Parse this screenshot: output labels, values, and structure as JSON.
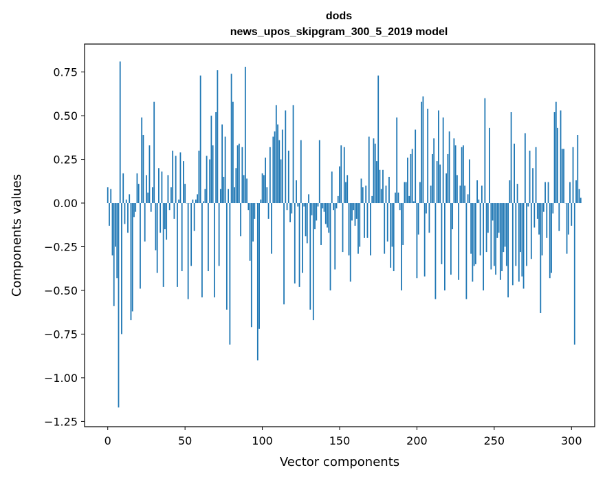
{
  "chart_data": {
    "type": "bar",
    "title": "dods",
    "subtitle": "news_upos_skipgram_300_5_2019 model",
    "xlabel": "Vector components",
    "ylabel": "Components values",
    "xlim": [
      -15,
      315
    ],
    "ylim": [
      -1.28,
      0.91
    ],
    "xticks": [
      0,
      50,
      100,
      150,
      200,
      250,
      300
    ],
    "xtick_labels": [
      "0",
      "50",
      "100",
      "150",
      "200",
      "250",
      "300"
    ],
    "yticks": [
      0.75,
      0.5,
      0.25,
      0.0,
      -0.25,
      -0.5,
      -0.75,
      -1.0,
      -1.25
    ],
    "ytick_labels": [
      "0.75",
      "0.50",
      "0.25",
      "0.00",
      "−0.25",
      "−0.50",
      "−0.75",
      "−1.00",
      "−1.25"
    ],
    "bar_color": "#1f77b4",
    "values": [
      0.09,
      -0.13,
      0.08,
      -0.3,
      -0.59,
      -0.25,
      -0.43,
      -1.17,
      0.81,
      -0.75,
      0.17,
      -0.12,
      0.02,
      -0.17,
      0.05,
      -0.67,
      -0.62,
      -0.08,
      -0.05,
      0.17,
      0.11,
      -0.49,
      0.49,
      0.39,
      -0.22,
      0.16,
      0.06,
      0.33,
      -0.05,
      0.09,
      0.58,
      -0.27,
      -0.4,
      0.2,
      -0.17,
      0.18,
      -0.48,
      -0.15,
      -0.21,
      0.16,
      -0.04,
      0.09,
      0.3,
      -0.09,
      0.27,
      -0.48,
      0.02,
      0.29,
      -0.39,
      0.24,
      0.11,
      0.0,
      -0.55,
      0.0,
      -0.36,
      0.02,
      -0.16,
      0.02,
      0.05,
      0.3,
      0.73,
      -0.54,
      0.01,
      0.08,
      0.27,
      -0.39,
      0.25,
      0.5,
      0.33,
      -0.54,
      0.52,
      0.76,
      -0.36,
      0.08,
      0.45,
      0.15,
      0.38,
      -0.61,
      0.08,
      -0.81,
      0.74,
      0.58,
      0.09,
      0.2,
      0.33,
      0.34,
      -0.19,
      0.32,
      0.16,
      0.78,
      0.14,
      -0.04,
      -0.33,
      -0.71,
      -0.22,
      -0.09,
      0.0,
      -0.9,
      -0.72,
      0.02,
      0.17,
      0.16,
      0.26,
      0.09,
      -0.09,
      0.32,
      -0.29,
      0.38,
      0.41,
      0.56,
      0.45,
      0.36,
      0.25,
      0.42,
      -0.58,
      0.53,
      -0.04,
      0.3,
      -0.11,
      -0.06,
      0.56,
      -0.46,
      0.13,
      -0.02,
      -0.48,
      0.36,
      -0.4,
      -0.02,
      -0.19,
      -0.23,
      0.05,
      -0.61,
      -0.07,
      -0.67,
      -0.15,
      -0.1,
      -0.02,
      0.36,
      -0.24,
      -0.03,
      -0.05,
      -0.12,
      -0.14,
      -0.17,
      -0.5,
      0.18,
      -0.04,
      -0.38,
      -0.03,
      0.04,
      0.21,
      0.33,
      -0.28,
      0.32,
      0.12,
      0.16,
      -0.3,
      -0.45,
      -0.1,
      -0.04,
      -0.13,
      -0.09,
      -0.29,
      -0.25,
      0.14,
      0.09,
      -0.2,
      0.1,
      -0.2,
      0.38,
      -0.3,
      0.04,
      0.37,
      0.34,
      0.24,
      0.73,
      0.19,
      0.08,
      0.19,
      -0.29,
      0.1,
      -0.22,
      0.15,
      -0.37,
      -0.25,
      -0.39,
      0.06,
      0.49,
      0.06,
      -0.04,
      -0.5,
      -0.24,
      0.12,
      0.12,
      0.26,
      0.04,
      0.28,
      0.31,
      0.01,
      0.42,
      -0.43,
      -0.18,
      0.12,
      0.58,
      0.61,
      -0.42,
      -0.06,
      0.54,
      -0.17,
      0.1,
      0.28,
      0.37,
      -0.55,
      0.24,
      0.53,
      0.22,
      -0.35,
      0.49,
      -0.5,
      0.17,
      0.28,
      0.41,
      -0.41,
      -0.15,
      0.37,
      0.33,
      0.16,
      -0.44,
      0.1,
      0.32,
      0.33,
      0.1,
      -0.55,
      0.05,
      0.25,
      -0.29,
      -0.45,
      -0.36,
      -0.35,
      0.13,
      0.02,
      -0.3,
      0.1,
      -0.5,
      0.6,
      -0.28,
      -0.17,
      0.43,
      -0.38,
      -0.1,
      -0.36,
      -0.41,
      -0.2,
      -0.17,
      -0.44,
      -0.39,
      -0.28,
      -0.25,
      -0.36,
      -0.54,
      0.13,
      0.52,
      -0.47,
      0.34,
      -0.36,
      0.11,
      -0.45,
      -0.28,
      -0.42,
      -0.49,
      0.4,
      -0.36,
      -0.02,
      0.3,
      -0.32,
      0.2,
      -0.14,
      0.32,
      -0.09,
      -0.18,
      -0.63,
      -0.3,
      -0.05,
      0.12,
      -0.2,
      0.12,
      -0.43,
      -0.4,
      -0.06,
      0.52,
      0.58,
      0.43,
      -0.16,
      0.53,
      0.31,
      0.31,
      0.0,
      -0.29,
      -0.18,
      0.12,
      -0.13,
      0.32,
      -0.81,
      0.13,
      0.39,
      0.08,
      0.03
    ]
  }
}
